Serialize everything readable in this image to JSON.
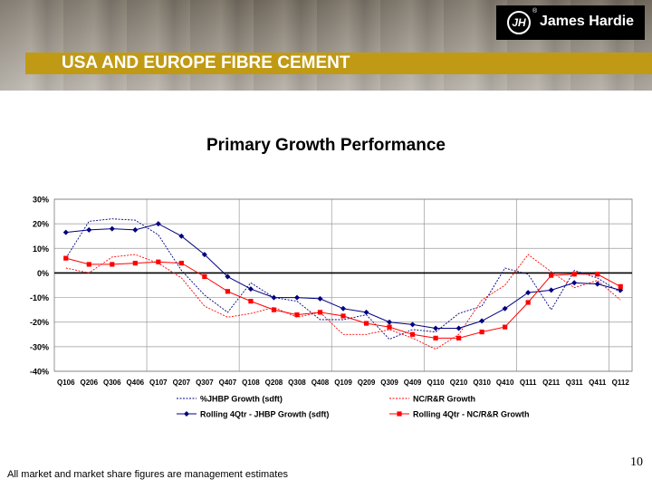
{
  "header": {
    "section_title": "USA AND EUROPE FIBRE CEMENT",
    "logo_text": "James Hardie",
    "logo_mark": "JH",
    "logo_reg": "®"
  },
  "footer": {
    "note": "All market and market share figures are management estimates",
    "page_number": "10"
  },
  "colors": {
    "title_band": "#c19a15",
    "blue": "#000080",
    "red": "#ff0000"
  },
  "chart_data": {
    "type": "line",
    "title": "Primary Growth Performance",
    "xlabel": "",
    "ylabel": "",
    "ylim": [
      -40,
      30
    ],
    "yticks": [
      30,
      20,
      10,
      0,
      -10,
      -20,
      -30,
      -40
    ],
    "ytick_labels": [
      "30%",
      "20%",
      "10%",
      "0%",
      "-10%",
      "-20%",
      "-30%",
      "-40%"
    ],
    "categories": [
      "Q106",
      "Q206",
      "Q306",
      "Q406",
      "Q107",
      "Q207",
      "Q307",
      "Q407",
      "Q108",
      "Q208",
      "Q308",
      "Q408",
      "Q109",
      "Q209",
      "Q309",
      "Q409",
      "Q110",
      "Q210",
      "Q310",
      "Q410",
      "Q111",
      "Q211",
      "Q311",
      "Q411",
      "Q112"
    ],
    "legend_position": "bottom",
    "series": [
      {
        "name": "%JHBP Growth (sdft)",
        "style": "dotted",
        "color": "#000080",
        "marker": "none",
        "values": [
          6,
          21,
          22,
          21.5,
          15.5,
          1,
          -9,
          -16,
          -4,
          -10,
          -11.5,
          -19,
          -19,
          -17,
          -27,
          -23,
          -24,
          -16.5,
          -13.5,
          2,
          -0.5,
          -15,
          1,
          -2,
          -8
        ]
      },
      {
        "name": "NC/R&R Growth",
        "style": "dotted",
        "color": "#ff0000",
        "marker": "none",
        "values": [
          2,
          0,
          6.5,
          7.5,
          4,
          -2,
          -13.5,
          -18,
          -16.5,
          -14,
          -18,
          -16,
          -25,
          -25,
          -23,
          -26.5,
          -31,
          -25,
          -11,
          -5,
          7.5,
          0.5,
          -6,
          -3,
          -11
        ]
      },
      {
        "name": "Rolling 4Qtr - JHBP Growth (sdft)",
        "style": "solid",
        "color": "#000080",
        "marker": "diamond",
        "values": [
          16.5,
          17.5,
          18,
          17.5,
          20,
          15,
          7.5,
          -1.5,
          -6.5,
          -10,
          -10,
          -10.5,
          -14.5,
          -16,
          -20,
          -21,
          -22.5,
          -22.5,
          -19.5,
          -14.5,
          -8,
          -7,
          -4,
          -4.5,
          -7
        ]
      },
      {
        "name": "Rolling 4Qtr - NC/R&R Growth",
        "style": "solid",
        "color": "#ff0000",
        "marker": "square",
        "values": [
          6,
          3.5,
          3.5,
          4,
          4.5,
          4,
          -1.5,
          -7.5,
          -11.5,
          -15,
          -17,
          -16,
          -17.5,
          -20.5,
          -22,
          -25,
          -26.5,
          -26.5,
          -24,
          -22,
          -12,
          -1,
          -0.5,
          -0.5,
          -5.5
        ]
      }
    ]
  }
}
